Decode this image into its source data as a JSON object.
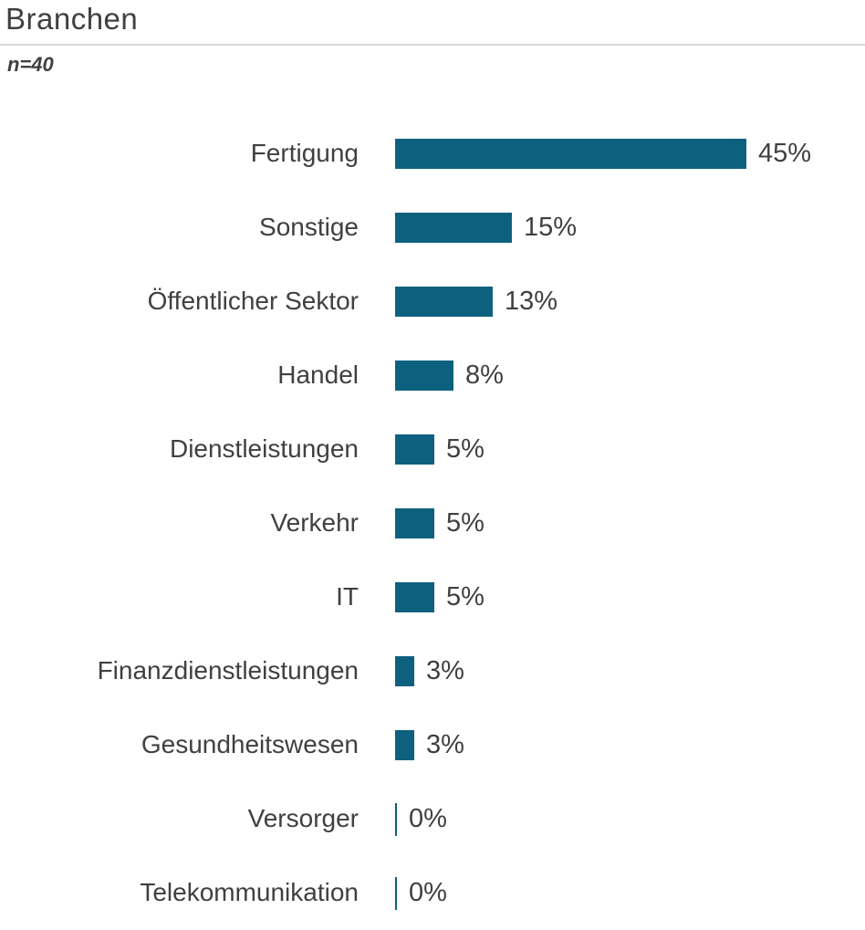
{
  "header": {
    "title": "Branchen",
    "sample_label": "n=40"
  },
  "colors": {
    "bar": "#0E617E",
    "text": "#404040",
    "divider": "#D9D9D9"
  },
  "chart_data": {
    "type": "bar",
    "orientation": "horizontal",
    "title": "Branchen",
    "subtitle": "n=40",
    "categories": [
      "Fertigung",
      "Sonstige",
      "Öffentlicher Sektor",
      "Handel",
      "Dienstleistungen",
      "Verkehr",
      "IT",
      "Finanzdienstleistungen",
      "Gesundheitswesen",
      "Versorger",
      "Telekommunikation"
    ],
    "values": [
      45,
      15,
      13,
      8,
      5,
      5,
      5,
      3,
      3,
      0,
      0
    ],
    "value_labels": [
      "45%",
      "15%",
      "13%",
      "8%",
      "5%",
      "5%",
      "5%",
      "3%",
      "3%",
      "0%",
      "0%"
    ],
    "bar_values": [
      45,
      15,
      12.5,
      7.5,
      5,
      5,
      5,
      2.5,
      2.5,
      0,
      0
    ],
    "xlim": [
      0,
      45
    ],
    "unit": "%",
    "ylabel": "",
    "xlabel": "",
    "legend": false,
    "gridlines": false
  }
}
